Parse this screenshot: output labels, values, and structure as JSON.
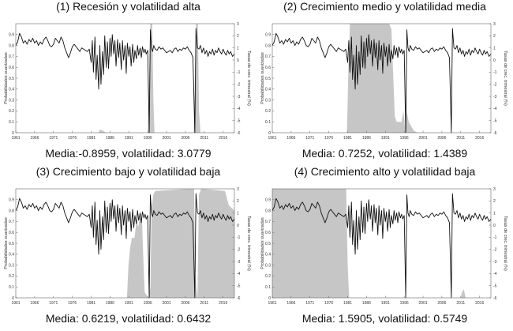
{
  "chart_data": [
    {
      "type": "area",
      "title": "(1) Recesión y volatilidad alta",
      "stats": "Media:-0.8959, volatilidad: 3.0779",
      "ylabel": "Probabilidades suavizadas",
      "y2label": "Tasas de crec. trimestral (%)",
      "ylim": [
        0,
        1
      ],
      "y2lim": [
        -6,
        3
      ],
      "xlim": [
        1961,
        2019
      ],
      "x_ticks": [
        "1961",
        "1966",
        "1971",
        "1976",
        "1981",
        "1986",
        "1991",
        "1996",
        "2001",
        "2006",
        "2011",
        "2016"
      ],
      "y_ticks": [
        "0",
        "0.1",
        "0.2",
        "0.3",
        "0.4",
        "0.5",
        "0.6",
        "0.7",
        "0.8",
        "0.9"
      ],
      "y2_ticks": [
        "-6",
        "-5",
        "-4",
        "-3",
        "-2",
        "-1",
        "0",
        "1",
        "2",
        "3"
      ],
      "probability": [
        [
          1961,
          0
        ],
        [
          1983,
          0
        ],
        [
          1983.3,
          0.03
        ],
        [
          1984,
          0.02
        ],
        [
          1985,
          0
        ],
        [
          1996,
          0
        ],
        [
          1996.3,
          0.35
        ],
        [
          1996.7,
          1
        ],
        [
          1997.2,
          1
        ],
        [
          1997.5,
          0.3
        ],
        [
          1997.8,
          0
        ],
        [
          2008.2,
          0
        ],
        [
          2008.5,
          0.45
        ],
        [
          2008.8,
          1
        ],
        [
          2009.3,
          1
        ],
        [
          2009.6,
          0.2
        ],
        [
          2010,
          0
        ],
        [
          2019,
          0
        ]
      ]
    },
    {
      "type": "area",
      "title": "(2) Crecimiento medio y volatilidad media",
      "stats": "Media: 0.7252, volatilidad: 1.4389",
      "ylabel": "Probabilidades suavizadas",
      "y2label": "Tasas de crec. trimestral (%)",
      "ylim": [
        0,
        1
      ],
      "y2lim": [
        -6,
        3
      ],
      "xlim": [
        1961,
        2019
      ],
      "x_ticks": [
        "1961",
        "1966",
        "1971",
        "1976",
        "1981",
        "1986",
        "1991",
        "1996",
        "2001",
        "2006",
        "2011",
        "2016"
      ],
      "y_ticks": [
        "0",
        "0.1",
        "0.2",
        "0.3",
        "0.4",
        "0.5",
        "0.6",
        "0.7",
        "0.8",
        "0.9"
      ],
      "y2_ticks": [
        "-6",
        "-5",
        "-4",
        "-3",
        "-2",
        "-1",
        "0",
        "1",
        "2",
        "3"
      ],
      "probability": [
        [
          1961,
          0
        ],
        [
          1980.8,
          0
        ],
        [
          1981.2,
          0.6
        ],
        [
          1981.6,
          1
        ],
        [
          1992,
          1
        ],
        [
          1992.6,
          0.95
        ],
        [
          1993,
          0.6
        ],
        [
          1993.5,
          0.15
        ],
        [
          1994,
          0.1
        ],
        [
          1994.8,
          0.1
        ],
        [
          1995.3,
          0.1
        ],
        [
          1995.8,
          0.2
        ],
        [
          1996.2,
          0.05
        ],
        [
          1996.6,
          0.2
        ],
        [
          1997.2,
          0.1
        ],
        [
          1998.5,
          0.02
        ],
        [
          1999.5,
          0
        ],
        [
          2019,
          0
        ]
      ]
    },
    {
      "type": "area",
      "title": "(3) Crecimiento bajo y volatilidad baja",
      "stats": "Media: 0.6219, volatilidad: 0.6432",
      "ylabel": "Probabilidades suavizadas",
      "y2label": "Tasas de crec. trimestral (%)",
      "ylim": [
        0,
        1
      ],
      "y2lim": [
        -6,
        3
      ],
      "xlim": [
        1961,
        2019
      ],
      "x_ticks": [
        "1961",
        "1966",
        "1971",
        "1976",
        "1981",
        "1986",
        "1991",
        "1996",
        "2001",
        "2006",
        "2011",
        "2016"
      ],
      "y_ticks": [
        "0",
        "0.1",
        "0.2",
        "0.3",
        "0.4",
        "0.5",
        "0.6",
        "0.7",
        "0.8",
        "0.9"
      ],
      "y2_ticks": [
        "-6",
        "-5",
        "-4",
        "-3",
        "-2",
        "-1",
        "0",
        "1",
        "2",
        "3"
      ],
      "probability": [
        [
          1961,
          0
        ],
        [
          1990.5,
          0
        ],
        [
          1990.9,
          0.3
        ],
        [
          1991.3,
          0.45
        ],
        [
          1991.8,
          0.55
        ],
        [
          1992.5,
          0.55
        ],
        [
          1993,
          0.7
        ],
        [
          1993.5,
          0.65
        ],
        [
          1994,
          0.75
        ],
        [
          1994.5,
          0.7
        ],
        [
          1994.9,
          0.3
        ],
        [
          1995.2,
          0.05
        ],
        [
          1996.2,
          0
        ],
        [
          1996.7,
          0.1
        ],
        [
          1997,
          0.8
        ],
        [
          1997.5,
          0.95
        ],
        [
          1998,
          0.98
        ],
        [
          2007,
          1
        ],
        [
          2008.3,
          1
        ],
        [
          2008.6,
          0.2
        ],
        [
          2009.2,
          0
        ],
        [
          2009.6,
          0.95
        ],
        [
          2010.2,
          1
        ],
        [
          2016.5,
          0.98
        ],
        [
          2017.5,
          0.85
        ],
        [
          2019,
          0.8
        ]
      ]
    },
    {
      "type": "area",
      "title": "(4) Crecimiento alto y volatilidad baja",
      "stats": "Media: 1.5905, volatilidad: 0.5749",
      "ylabel": "Probabilidades suavizadas",
      "y2label": "Tasas de crec. trimestral (%)",
      "ylim": [
        0,
        1
      ],
      "y2lim": [
        -6,
        3
      ],
      "xlim": [
        1961,
        2019
      ],
      "x_ticks": [
        "1961",
        "1966",
        "1971",
        "1976",
        "1981",
        "1986",
        "1991",
        "1996",
        "2001",
        "2006",
        "2011",
        "2016"
      ],
      "y_ticks": [
        "0",
        "0.1",
        "0.2",
        "0.3",
        "0.4",
        "0.5",
        "0.6",
        "0.7",
        "0.8",
        "0.9"
      ],
      "y2_ticks": [
        "-6",
        "-5",
        "-4",
        "-3",
        "-2",
        "-1",
        "0",
        "1",
        "2",
        "3"
      ],
      "probability": [
        [
          1961,
          1
        ],
        [
          1980.6,
          1
        ],
        [
          1981,
          0.3
        ],
        [
          1981.4,
          0
        ],
        [
          2011,
          0
        ],
        [
          2011.3,
          0.05
        ],
        [
          2011.8,
          0.08
        ],
        [
          2012.3,
          0
        ],
        [
          2019,
          0
        ]
      ]
    }
  ],
  "growth_series": {
    "description_units": "quarterly growth rate (%)",
    "points": [
      [
        1961,
        1.2
      ],
      [
        1961.5,
        1.5
      ],
      [
        1962,
        2.2
      ],
      [
        1962.5,
        1.9
      ],
      [
        1963,
        1.4
      ],
      [
        1963.5,
        1.6
      ],
      [
        1964,
        1.3
      ],
      [
        1964.5,
        1.7
      ],
      [
        1965,
        1.5
      ],
      [
        1965.5,
        1.8
      ],
      [
        1966,
        1.4
      ],
      [
        1966.5,
        1.6
      ],
      [
        1967,
        1.2
      ],
      [
        1967.5,
        1.5
      ],
      [
        1968,
        1.3
      ],
      [
        1968.5,
        1.7
      ],
      [
        1969,
        1.9
      ],
      [
        1969.5,
        1.6
      ],
      [
        1970,
        1.2
      ],
      [
        1970.5,
        1.1
      ],
      [
        1971,
        1.3
      ],
      [
        1971.5,
        1.8
      ],
      [
        1972,
        1.6
      ],
      [
        1972.5,
        1.4
      ],
      [
        1973,
        1.9
      ],
      [
        1973.5,
        1.6
      ],
      [
        1974,
        1.0
      ],
      [
        1974.5,
        0.6
      ],
      [
        1975,
        0.2
      ],
      [
        1975.5,
        0.6
      ],
      [
        1976,
        1.1
      ],
      [
        1976.5,
        1.3
      ],
      [
        1977,
        1.1
      ],
      [
        1977.5,
        0.9
      ],
      [
        1978,
        0.7
      ],
      [
        1978.5,
        1.0
      ],
      [
        1979,
        0.9
      ],
      [
        1979.5,
        0.8
      ],
      [
        1980,
        0.7
      ],
      [
        1980.5,
        0.9
      ],
      [
        1981,
        -0.2
      ],
      [
        1981.3,
        1.6
      ],
      [
        1981.6,
        -1.0
      ],
      [
        1982,
        1.9
      ],
      [
        1982.3,
        -1.6
      ],
      [
        1982.6,
        0.4
      ],
      [
        1983,
        -2.4
      ],
      [
        1983.3,
        1.2
      ],
      [
        1983.6,
        -2.0
      ],
      [
        1984,
        0.7
      ],
      [
        1984.3,
        -1.2
      ],
      [
        1984.6,
        2.0
      ],
      [
        1985,
        -0.6
      ],
      [
        1985.3,
        1.5
      ],
      [
        1985.6,
        -0.7
      ],
      [
        1986,
        1.8
      ],
      [
        1986.3,
        0.3
      ],
      [
        1986.6,
        2.1
      ],
      [
        1987,
        0.5
      ],
      [
        1987.3,
        1.6
      ],
      [
        1987.6,
        -0.5
      ],
      [
        1988,
        1.7
      ],
      [
        1988.3,
        0.2
      ],
      [
        1988.6,
        1.4
      ],
      [
        1989,
        -0.8
      ],
      [
        1989.3,
        1.6
      ],
      [
        1989.6,
        0.0
      ],
      [
        1990,
        1.2
      ],
      [
        1990.3,
        -1.1
      ],
      [
        1990.6,
        1.4
      ],
      [
        1991,
        0.3
      ],
      [
        1991.3,
        1.1
      ],
      [
        1991.6,
        -0.5
      ],
      [
        1992,
        1.3
      ],
      [
        1992.3,
        -0.2
      ],
      [
        1992.6,
        0.8
      ],
      [
        1993,
        0.1
      ],
      [
        1993.3,
        1.2
      ],
      [
        1993.6,
        0.4
      ],
      [
        1994,
        1.0
      ],
      [
        1994.3,
        0.2
      ],
      [
        1994.6,
        1.1
      ],
      [
        1995,
        0.6
      ],
      [
        1995.3,
        0.9
      ],
      [
        1995.6,
        0.5
      ],
      [
        1996,
        0.8
      ],
      [
        1996.4,
        -6.5
      ],
      [
        1996.7,
        2.5
      ],
      [
        1997,
        1.0
      ],
      [
        1997.3,
        0.7
      ],
      [
        1997.6,
        1.2
      ],
      [
        1998,
        0.9
      ],
      [
        1998.5,
        0.8
      ],
      [
        1999,
        1.1
      ],
      [
        1999.5,
        0.9
      ],
      [
        2000,
        1.0
      ],
      [
        2000.5,
        0.8
      ],
      [
        2001,
        0.6
      ],
      [
        2001.5,
        0.7
      ],
      [
        2002,
        0.8
      ],
      [
        2002.5,
        0.6
      ],
      [
        2003,
        0.9
      ],
      [
        2003.5,
        1.0
      ],
      [
        2004,
        0.7
      ],
      [
        2004.5,
        0.9
      ],
      [
        2005,
        0.8
      ],
      [
        2005.5,
        1.0
      ],
      [
        2006,
        0.9
      ],
      [
        2006.5,
        1.1
      ],
      [
        2007,
        0.8
      ],
      [
        2007.5,
        0.6
      ],
      [
        2008,
        0.2
      ],
      [
        2008.5,
        -6.0
      ],
      [
        2008.8,
        2.6
      ],
      [
        2009.2,
        1.0
      ],
      [
        2009.6,
        0.9
      ],
      [
        2010,
        1.2
      ],
      [
        2010.4,
        0.6
      ],
      [
        2010.8,
        1.0
      ],
      [
        2011.2,
        0.5
      ],
      [
        2011.6,
        0.8
      ],
      [
        2012,
        0.3
      ],
      [
        2012.4,
        0.7
      ],
      [
        2012.8,
        0.5
      ],
      [
        2013.2,
        0.9
      ],
      [
        2013.6,
        0.4
      ],
      [
        2014,
        0.8
      ],
      [
        2014.4,
        0.6
      ],
      [
        2014.8,
        1.0
      ],
      [
        2015.2,
        0.7
      ],
      [
        2015.6,
        0.5
      ],
      [
        2016,
        0.9
      ],
      [
        2016.4,
        0.6
      ],
      [
        2016.8,
        0.4
      ],
      [
        2017.2,
        0.8
      ],
      [
        2017.6,
        0.5
      ],
      [
        2018,
        0.7
      ],
      [
        2018.5,
        0.3
      ],
      [
        2019,
        0.5
      ]
    ]
  }
}
